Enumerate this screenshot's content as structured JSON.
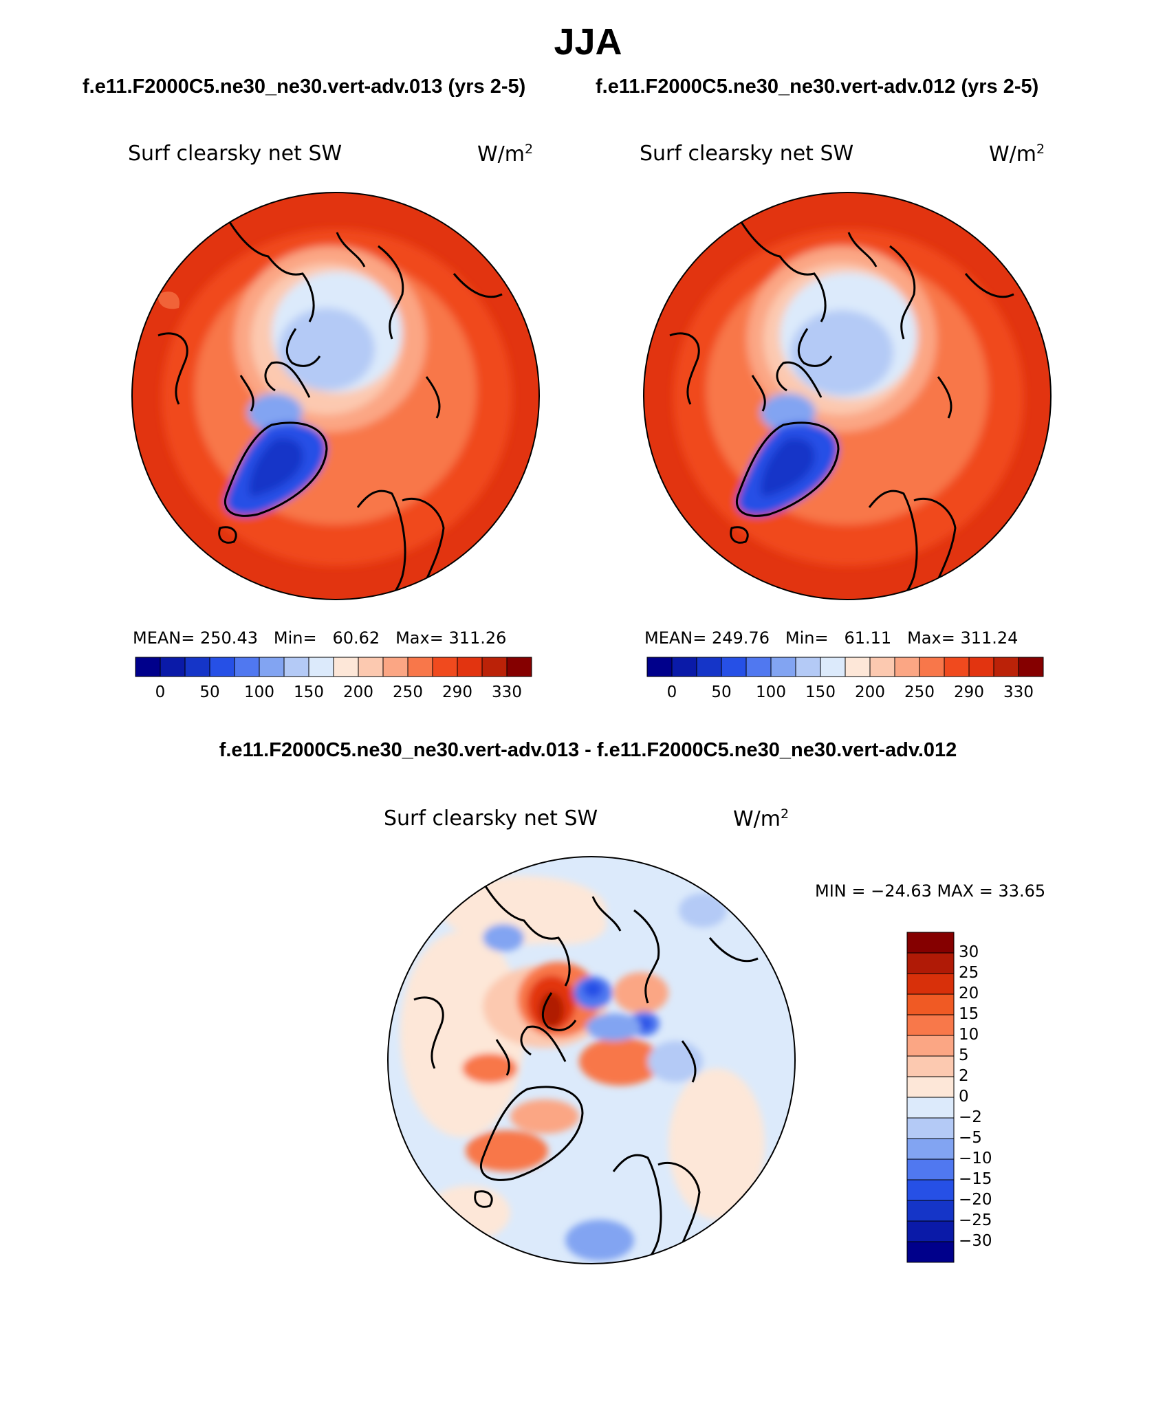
{
  "header": {
    "season": "JJA",
    "case1": "f.e11.F2000C5.ne30_ne30.vert-adv.013 (yrs 2-5)",
    "case2": "f.e11.F2000C5.ne30_ne30.vert-adv.012 (yrs 2-5)",
    "diff_title": "f.e11.F2000C5.ne30_ne30.vert-adv.013 - f.e11.F2000C5.ne30_ne30.vert-adv.012"
  },
  "panels": {
    "left": {
      "variable": "Surf clearsky net SW",
      "units": "W/m",
      "units_exp": "2",
      "mean_label": "MEAN=",
      "mean": "250.43",
      "min_label": "Min=",
      "min": "60.62",
      "max_label": "Max=",
      "max": "311.26"
    },
    "right": {
      "variable": "Surf clearsky net SW",
      "units": "W/m",
      "units_exp": "2",
      "mean_label": "MEAN=",
      "mean": "249.76",
      "min_label": "Min=",
      "min": "61.11",
      "max_label": "Max=",
      "max": "311.24"
    },
    "diff": {
      "variable": "Surf clearsky net SW",
      "units": "W/m",
      "units_exp": "2",
      "minmax": "MIN = −24.63 MAX =   33.65"
    }
  },
  "colorbars": {
    "field": {
      "colors": [
        "#00008b",
        "#0a1aa8",
        "#1535c8",
        "#2650e6",
        "#5078f0",
        "#82a4f2",
        "#b4caf6",
        "#dceafb",
        "#fde7d8",
        "#fcc9b0",
        "#fba684",
        "#f8774a",
        "#f04a1e",
        "#e23410",
        "#bb2208",
        "#850000"
      ],
      "ticks": [
        "0",
        "50",
        "100",
        "150",
        "200",
        "250",
        "290",
        "330"
      ]
    },
    "diff": {
      "colors_top_to_bottom": [
        "#850000",
        "#b01a06",
        "#d8300a",
        "#f05a24",
        "#f8784a",
        "#fba684",
        "#fcc9b0",
        "#fde7d8",
        "#dceafb",
        "#b4caf6",
        "#82a4f2",
        "#5078f0",
        "#2650e6",
        "#1535c8",
        "#0a1aa8",
        "#00008b"
      ],
      "ticks": [
        "30",
        "25",
        "20",
        "15",
        "10",
        "5",
        "2",
        "0",
        "−2",
        "−5",
        "−10",
        "−15",
        "−20",
        "−25",
        "−30"
      ]
    }
  }
}
